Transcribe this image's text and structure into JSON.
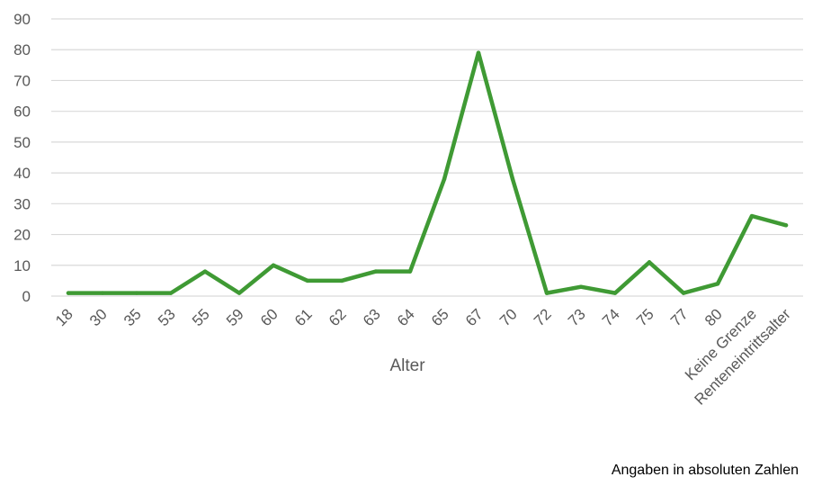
{
  "chart_data": {
    "type": "line",
    "categories": [
      "18",
      "30",
      "35",
      "53",
      "55",
      "59",
      "60",
      "61",
      "62",
      "63",
      "64",
      "65",
      "67",
      "70",
      "72",
      "73",
      "74",
      "75",
      "77",
      "80",
      "Keine Grenze",
      "Renteneintrittsalter"
    ],
    "values": [
      1,
      1,
      1,
      1,
      8,
      1,
      10,
      5,
      5,
      8,
      8,
      38,
      79,
      38,
      1,
      3,
      1,
      11,
      1,
      4,
      26,
      23
    ],
    "xlabel": "Alter",
    "ylabel": "",
    "ylim": [
      0,
      90
    ],
    "yticks": [
      "0",
      "10",
      "20",
      "30",
      "40",
      "50",
      "60",
      "70",
      "80",
      "90"
    ],
    "grid": true,
    "legend": "none",
    "line_color": "#3f9a34",
    "grid_color": "#d9d9d9"
  },
  "note": "Angaben in absoluten Zahlen"
}
